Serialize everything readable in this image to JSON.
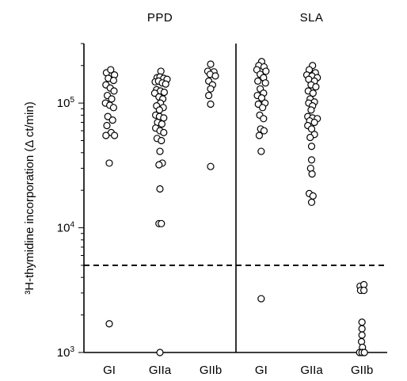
{
  "chart_data": {
    "type": "scatter",
    "ylabel": "³H-thymidine incorporation (Δ ct/min)",
    "yscale": "log",
    "ylim": [
      1000,
      300000
    ],
    "yticks": [
      {
        "value": 1000,
        "base": "10",
        "exp": "3"
      },
      {
        "value": 10000,
        "base": "10",
        "exp": "4"
      },
      {
        "value": 100000,
        "base": "10",
        "exp": "5"
      }
    ],
    "threshold": 5000,
    "grid": false,
    "legend": "none",
    "panels": [
      {
        "title": "PPD",
        "groups": [
          {
            "label": "GI",
            "values": [
              {
                "dx": -0.3,
                "v": 175000
              },
              {
                "dx": 0.15,
                "v": 185000
              },
              {
                "dx": 0.55,
                "v": 168000
              },
              {
                "dx": -0.1,
                "v": 158000
              },
              {
                "dx": 0.45,
                "v": 152000
              },
              {
                "dx": -0.35,
                "v": 140000
              },
              {
                "dx": 0.1,
                "v": 132000
              },
              {
                "dx": 0.5,
                "v": 125000
              },
              {
                "dx": -0.2,
                "v": 115000
              },
              {
                "dx": 0.25,
                "v": 108000
              },
              {
                "dx": -0.4,
                "v": 100000
              },
              {
                "dx": 0.05,
                "v": 96000
              },
              {
                "dx": 0.45,
                "v": 92000
              },
              {
                "dx": -0.15,
                "v": 78000
              },
              {
                "dx": 0.35,
                "v": 73000
              },
              {
                "dx": -0.25,
                "v": 66000
              },
              {
                "dx": 0.2,
                "v": 58000
              },
              {
                "dx": -0.35,
                "v": 55000
              },
              {
                "dx": 0.55,
                "v": 55000
              },
              {
                "dx": 0.0,
                "v": 33000
              },
              {
                "dx": 0.0,
                "v": 1700
              }
            ]
          },
          {
            "label": "GIIa",
            "values": [
              {
                "dx": 0.1,
                "v": 180000
              },
              {
                "dx": -0.3,
                "v": 160000
              },
              {
                "dx": 0.0,
                "v": 162000
              },
              {
                "dx": 0.4,
                "v": 158000
              },
              {
                "dx": 0.75,
                "v": 155000
              },
              {
                "dx": -0.5,
                "v": 148000
              },
              {
                "dx": -0.15,
                "v": 150000
              },
              {
                "dx": 0.25,
                "v": 145000
              },
              {
                "dx": 0.6,
                "v": 142000
              },
              {
                "dx": -0.35,
                "v": 128000
              },
              {
                "dx": 0.05,
                "v": 125000
              },
              {
                "dx": 0.45,
                "v": 122000
              },
              {
                "dx": -0.55,
                "v": 120000
              },
              {
                "dx": -0.1,
                "v": 112000
              },
              {
                "dx": 0.3,
                "v": 108000
              },
              {
                "dx": 0.05,
                "v": 100000
              },
              {
                "dx": -0.35,
                "v": 95000
              },
              {
                "dx": 0.35,
                "v": 92000
              },
              {
                "dx": -0.05,
                "v": 88000
              },
              {
                "dx": -0.45,
                "v": 80000
              },
              {
                "dx": -0.05,
                "v": 78000
              },
              {
                "dx": 0.4,
                "v": 76000
              },
              {
                "dx": -0.25,
                "v": 70000
              },
              {
                "dx": 0.2,
                "v": 68000
              },
              {
                "dx": -0.45,
                "v": 63000
              },
              {
                "dx": 0.0,
                "v": 60000
              },
              {
                "dx": 0.4,
                "v": 58000
              },
              {
                "dx": -0.3,
                "v": 52000
              },
              {
                "dx": 0.15,
                "v": 50000
              },
              {
                "dx": 0.0,
                "v": 41000
              },
              {
                "dx": 0.25,
                "v": 33000
              },
              {
                "dx": -0.1,
                "v": 32000
              },
              {
                "dx": 0.0,
                "v": 20500
              },
              {
                "dx": -0.1,
                "v": 10800
              },
              {
                "dx": 0.15,
                "v": 10800
              },
              {
                "dx": 0.0,
                "v": 1000
              }
            ]
          },
          {
            "label": "GIIb",
            "values": [
              {
                "dx": 0.0,
                "v": 205000
              },
              {
                "dx": -0.3,
                "v": 180000
              },
              {
                "dx": 0.35,
                "v": 178000
              },
              {
                "dx": -0.05,
                "v": 170000
              },
              {
                "dx": 0.5,
                "v": 165000
              },
              {
                "dx": -0.2,
                "v": 150000
              },
              {
                "dx": 0.2,
                "v": 140000
              },
              {
                "dx": 0.0,
                "v": 130000
              },
              {
                "dx": -0.2,
                "v": 115000
              },
              {
                "dx": 0.0,
                "v": 98000
              },
              {
                "dx": 0.0,
                "v": 31000
              }
            ]
          }
        ]
      },
      {
        "title": "SLA",
        "groups": [
          {
            "label": "GI",
            "values": [
              {
                "dx": 0.05,
                "v": 215000
              },
              {
                "dx": -0.25,
                "v": 200000
              },
              {
                "dx": 0.3,
                "v": 195000
              },
              {
                "dx": -0.45,
                "v": 185000
              },
              {
                "dx": 0.5,
                "v": 180000
              },
              {
                "dx": -0.1,
                "v": 170000
              },
              {
                "dx": 0.25,
                "v": 160000
              },
              {
                "dx": -0.35,
                "v": 150000
              },
              {
                "dx": 0.45,
                "v": 145000
              },
              {
                "dx": -0.1,
                "v": 130000
              },
              {
                "dx": 0.25,
                "v": 120000
              },
              {
                "dx": -0.4,
                "v": 115000
              },
              {
                "dx": 0.05,
                "v": 110000
              },
              {
                "dx": 0.4,
                "v": 100000
              },
              {
                "dx": -0.3,
                "v": 98000
              },
              {
                "dx": 0.15,
                "v": 92000
              },
              {
                "dx": -0.15,
                "v": 80000
              },
              {
                "dx": 0.25,
                "v": 75000
              },
              {
                "dx": -0.05,
                "v": 62000
              },
              {
                "dx": 0.3,
                "v": 60000
              },
              {
                "dx": -0.2,
                "v": 55000
              },
              {
                "dx": 0.0,
                "v": 41000
              },
              {
                "dx": 0.0,
                "v": 2700
              }
            ]
          },
          {
            "label": "GIIa",
            "values": [
              {
                "dx": 0.1,
                "v": 200000
              },
              {
                "dx": -0.25,
                "v": 185000
              },
              {
                "dx": 0.4,
                "v": 175000
              },
              {
                "dx": -0.5,
                "v": 168000
              },
              {
                "dx": 0.05,
                "v": 165000
              },
              {
                "dx": 0.6,
                "v": 160000
              },
              {
                "dx": -0.3,
                "v": 155000
              },
              {
                "dx": 0.3,
                "v": 150000
              },
              {
                "dx": -0.05,
                "v": 140000
              },
              {
                "dx": 0.45,
                "v": 135000
              },
              {
                "dx": -0.35,
                "v": 125000
              },
              {
                "dx": 0.15,
                "v": 120000
              },
              {
                "dx": -0.15,
                "v": 108000
              },
              {
                "dx": 0.3,
                "v": 102000
              },
              {
                "dx": -0.3,
                "v": 100000
              },
              {
                "dx": 0.1,
                "v": 95000
              },
              {
                "dx": -0.05,
                "v": 88000
              },
              {
                "dx": -0.4,
                "v": 78000
              },
              {
                "dx": 0.1,
                "v": 76000
              },
              {
                "dx": 0.6,
                "v": 75000
              },
              {
                "dx": -0.2,
                "v": 72000
              },
              {
                "dx": 0.3,
                "v": 70000
              },
              {
                "dx": -0.4,
                "v": 66000
              },
              {
                "dx": 0.0,
                "v": 62000
              },
              {
                "dx": 0.3,
                "v": 56000
              },
              {
                "dx": -0.15,
                "v": 53000
              },
              {
                "dx": 0.0,
                "v": 45000
              },
              {
                "dx": 0.0,
                "v": 35000
              },
              {
                "dx": -0.1,
                "v": 30000
              },
              {
                "dx": 0.05,
                "v": 27000
              },
              {
                "dx": -0.25,
                "v": 18800
              },
              {
                "dx": 0.15,
                "v": 18000
              },
              {
                "dx": 0.0,
                "v": 16000
              }
            ]
          },
          {
            "label": "GIIb",
            "values": [
              {
                "dx": -0.2,
                "v": 3400
              },
              {
                "dx": 0.2,
                "v": 3500
              },
              {
                "dx": -0.15,
                "v": 3150
              },
              {
                "dx": 0.2,
                "v": 3150
              },
              {
                "dx": 0.0,
                "v": 1750
              },
              {
                "dx": 0.0,
                "v": 1550
              },
              {
                "dx": 0.0,
                "v": 1380
              },
              {
                "dx": -0.05,
                "v": 1220
              },
              {
                "dx": 0.05,
                "v": 1100
              },
              {
                "dx": -0.25,
                "v": 1000
              },
              {
                "dx": 0.0,
                "v": 1000
              },
              {
                "dx": 0.25,
                "v": 1000
              }
            ]
          }
        ]
      }
    ]
  }
}
